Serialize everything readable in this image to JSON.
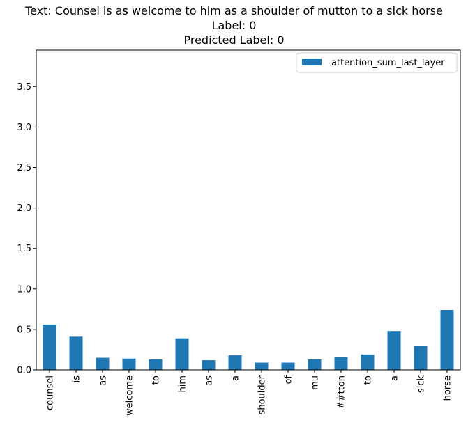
{
  "chart_data": {
    "type": "bar",
    "title_lines": [
      "Text: Counsel is as welcome to him as a shoulder of mutton to a sick horse",
      "Label: 0",
      "Predicted Label: 0"
    ],
    "categories": [
      "counsel",
      "is",
      "as",
      "welcome",
      "to",
      "him",
      "as",
      "a",
      "shoulder",
      "of",
      "mu",
      "##tton",
      "to",
      "a",
      "sick",
      "horse"
    ],
    "series": [
      {
        "name": "attention_sum_last_layer",
        "values": [
          0.56,
          0.41,
          0.15,
          0.14,
          0.13,
          0.39,
          0.12,
          0.18,
          0.09,
          0.09,
          0.13,
          0.16,
          0.19,
          0.48,
          0.3,
          0.74
        ]
      }
    ],
    "ylim": [
      0,
      3.95
    ],
    "yticks": [
      0.0,
      0.5,
      1.0,
      1.5,
      2.0,
      2.5,
      3.0,
      3.5
    ],
    "ytick_labels": [
      "0.0",
      "0.5",
      "1.0",
      "1.5",
      "2.0",
      "2.5",
      "3.0",
      "3.5"
    ],
    "xlabel": "",
    "ylabel": "",
    "grid": false,
    "legend_position": "top-right",
    "bar_color": "#1f77b4"
  }
}
